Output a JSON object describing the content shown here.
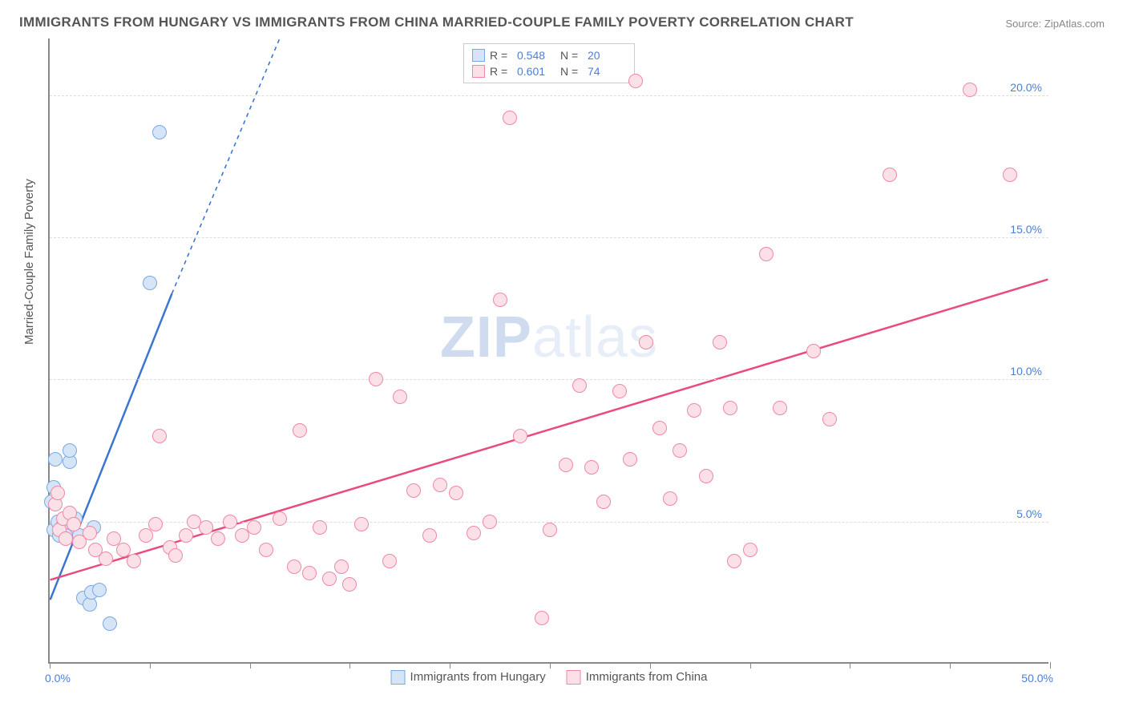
{
  "title": "IMMIGRANTS FROM HUNGARY VS IMMIGRANTS FROM CHINA MARRIED-COUPLE FAMILY POVERTY CORRELATION CHART",
  "source": "Source: ZipAtlas.com",
  "y_axis_title": "Married-Couple Family Poverty",
  "watermark_a": "ZIP",
  "watermark_b": "atlas",
  "chart": {
    "type": "scatter",
    "xlim": [
      0,
      50
    ],
    "ylim": [
      0,
      22
    ],
    "x_ticks": [
      0,
      5,
      10,
      15,
      20,
      25,
      30,
      35,
      40,
      45,
      50
    ],
    "y_gridlines": [
      5,
      10,
      15,
      20
    ],
    "y_labels": [
      {
        "v": 5,
        "text": "5.0%"
      },
      {
        "v": 10,
        "text": "10.0%"
      },
      {
        "v": 15,
        "text": "15.0%"
      },
      {
        "v": 20,
        "text": "20.0%"
      }
    ],
    "x_labels": [
      {
        "v": 0,
        "text": "0.0%"
      },
      {
        "v": 50,
        "text": "50.0%"
      }
    ],
    "background_color": "#ffffff",
    "grid_color": "#dddddd",
    "axis_color": "#888888",
    "marker_radius": 9,
    "marker_stroke_width": 1.5,
    "series": [
      {
        "name": "Immigrants from Hungary",
        "color_fill": "#d6e4f7",
        "color_stroke": "#7aa8e0",
        "line_color": "#3a76d0",
        "R": "0.548",
        "N": "20",
        "trend": {
          "x1": 0,
          "y1": 2.2,
          "x2": 6.1,
          "y2": 13.0,
          "dash_x2": 11.5,
          "dash_y2": 22
        },
        "points": [
          [
            0.1,
            5.7
          ],
          [
            0.2,
            6.2
          ],
          [
            0.2,
            4.7
          ],
          [
            0.3,
            7.2
          ],
          [
            0.4,
            5.0
          ],
          [
            0.5,
            4.5
          ],
          [
            0.6,
            4.8
          ],
          [
            0.8,
            4.5
          ],
          [
            1.0,
            7.1
          ],
          [
            1.0,
            7.5
          ],
          [
            1.3,
            5.1
          ],
          [
            1.5,
            4.5
          ],
          [
            1.7,
            2.3
          ],
          [
            2.0,
            2.1
          ],
          [
            2.1,
            2.5
          ],
          [
            2.5,
            2.6
          ],
          [
            3.0,
            1.4
          ],
          [
            5.0,
            13.4
          ],
          [
            5.5,
            18.7
          ],
          [
            2.2,
            4.8
          ]
        ]
      },
      {
        "name": "Immigrants from China",
        "color_fill": "#fbe0e8",
        "color_stroke": "#ef87a5",
        "line_color": "#e84c7a",
        "R": "0.601",
        "N": "74",
        "trend": {
          "x1": 0,
          "y1": 2.9,
          "x2": 50,
          "y2": 13.5
        },
        "points": [
          [
            0.3,
            5.6
          ],
          [
            0.4,
            6.0
          ],
          [
            0.5,
            4.7
          ],
          [
            0.7,
            5.1
          ],
          [
            0.8,
            4.4
          ],
          [
            1.0,
            5.3
          ],
          [
            1.2,
            4.9
          ],
          [
            1.5,
            4.3
          ],
          [
            2.0,
            4.6
          ],
          [
            2.3,
            4.0
          ],
          [
            2.8,
            3.7
          ],
          [
            3.2,
            4.4
          ],
          [
            3.7,
            4.0
          ],
          [
            4.2,
            3.6
          ],
          [
            4.8,
            4.5
          ],
          [
            5.3,
            4.9
          ],
          [
            5.5,
            8.0
          ],
          [
            6.0,
            4.1
          ],
          [
            6.3,
            3.8
          ],
          [
            6.8,
            4.5
          ],
          [
            7.2,
            5.0
          ],
          [
            7.8,
            4.8
          ],
          [
            8.4,
            4.4
          ],
          [
            9.0,
            5.0
          ],
          [
            9.6,
            4.5
          ],
          [
            10.2,
            4.8
          ],
          [
            10.8,
            4.0
          ],
          [
            11.5,
            5.1
          ],
          [
            12.2,
            3.4
          ],
          [
            12.5,
            8.2
          ],
          [
            13.0,
            3.2
          ],
          [
            13.5,
            4.8
          ],
          [
            14.0,
            3.0
          ],
          [
            14.6,
            3.4
          ],
          [
            15.0,
            2.8
          ],
          [
            15.6,
            4.9
          ],
          [
            16.3,
            10.0
          ],
          [
            17.0,
            3.6
          ],
          [
            17.5,
            9.4
          ],
          [
            18.2,
            6.1
          ],
          [
            19.0,
            4.5
          ],
          [
            19.5,
            6.3
          ],
          [
            20.3,
            6.0
          ],
          [
            21.2,
            4.6
          ],
          [
            22.0,
            5.0
          ],
          [
            23.0,
            19.2
          ],
          [
            22.5,
            12.8
          ],
          [
            23.5,
            8.0
          ],
          [
            24.6,
            1.6
          ],
          [
            25.0,
            4.7
          ],
          [
            25.8,
            7.0
          ],
          [
            26.5,
            9.8
          ],
          [
            27.1,
            6.9
          ],
          [
            27.7,
            5.7
          ],
          [
            28.5,
            9.6
          ],
          [
            29.0,
            7.2
          ],
          [
            29.3,
            20.5
          ],
          [
            29.8,
            11.3
          ],
          [
            30.5,
            8.3
          ],
          [
            31.0,
            5.8
          ],
          [
            31.5,
            7.5
          ],
          [
            32.2,
            8.9
          ],
          [
            32.8,
            6.6
          ],
          [
            33.5,
            11.3
          ],
          [
            34.2,
            3.6
          ],
          [
            35.0,
            4.0
          ],
          [
            35.8,
            14.4
          ],
          [
            36.5,
            9.0
          ],
          [
            38.2,
            11.0
          ],
          [
            39.0,
            8.6
          ],
          [
            42.0,
            17.2
          ],
          [
            46.0,
            20.2
          ],
          [
            48.0,
            17.2
          ],
          [
            34.0,
            9.0
          ]
        ]
      }
    ]
  },
  "legend_bottom": [
    {
      "label": "Immigrants from Hungary"
    },
    {
      "label": "Immigrants from China"
    }
  ]
}
